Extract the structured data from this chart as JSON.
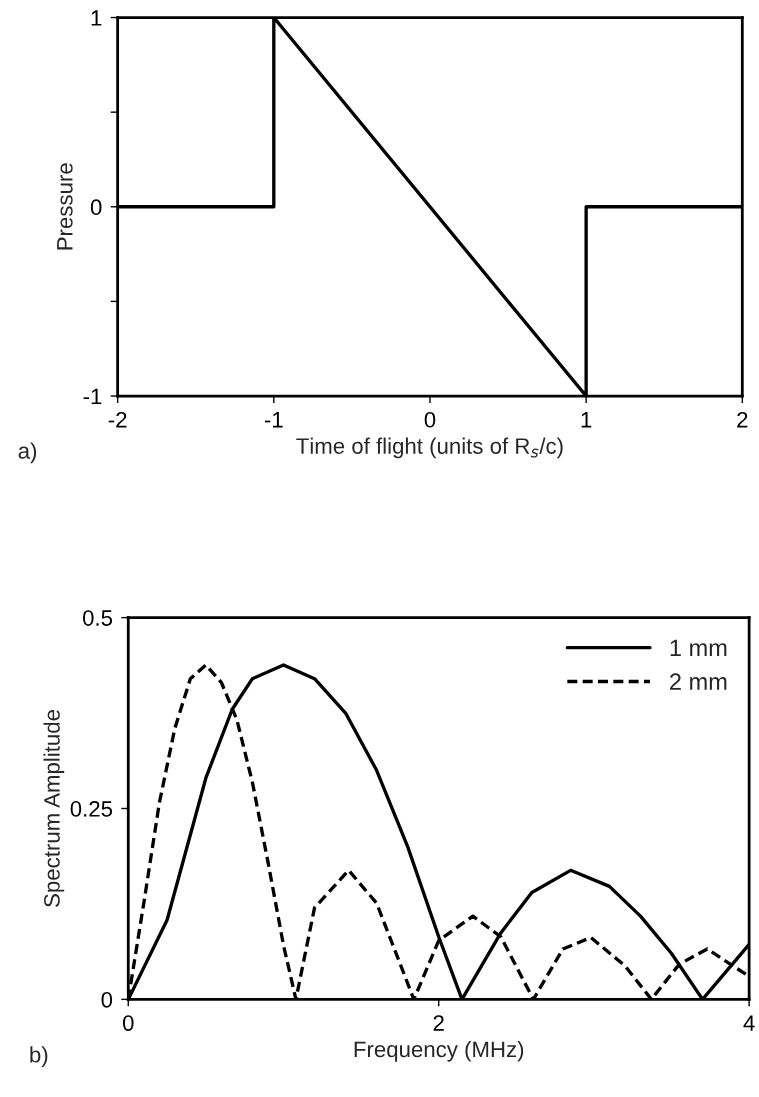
{
  "chart_data": [
    {
      "type": "line",
      "xlabel": "Time of flight (units of R$_{s}$/c)",
      "ylabel": "Pressure",
      "annotations": [
        "a)"
      ],
      "series": [
        {
          "color": "#000000",
          "line_style": "solid",
          "x": [
            -2,
            -1,
            -1,
            1,
            1,
            2
          ],
          "values": [
            0,
            0,
            1,
            -1,
            0,
            0
          ]
        }
      ],
      "xlim": [
        -2,
        2
      ],
      "xticks": [
        -2,
        -1,
        0,
        1,
        2
      ],
      "ylim": [
        -1,
        1
      ],
      "yticks": [
        -1,
        {
          "value": -0.5,
          "label": null
        },
        0,
        {
          "value": 0.5,
          "label": null
        },
        1
      ],
      "grid": false,
      "legend": false
    },
    {
      "type": "line",
      "xlabel": "Frequency (MHz)",
      "ylabel": "Spectrum Amplitude",
      "annotations": [
        "b)"
      ],
      "series": [
        {
          "name": "1 mm",
          "color": "#000000",
          "line_style": "solid",
          "x": [
            0,
            0.25,
            0.5,
            0.67,
            0.8,
            1.0,
            1.2,
            1.4,
            1.6,
            1.8,
            2.0,
            2.15,
            2.4,
            2.6,
            2.85,
            3.1,
            3.3,
            3.5,
            3.7,
            4.0
          ],
          "values": [
            0,
            0.104,
            0.29,
            0.38,
            0.42,
            0.438,
            0.42,
            0.375,
            0.3,
            0.2,
            0.082,
            0,
            0.087,
            0.14,
            0.169,
            0.148,
            0.109,
            0.06,
            0,
            0.072
          ]
        },
        {
          "name": "2 mm",
          "color": "#000000",
          "line_style": "dashed",
          "x": [
            0,
            0.1,
            0.2,
            0.3,
            0.4,
            0.5,
            0.6,
            0.7,
            0.8,
            0.9,
            1.0,
            1.08,
            1.2,
            1.42,
            1.6,
            1.84,
            2.0,
            2.22,
            2.4,
            2.61,
            2.8,
            2.98,
            3.2,
            3.37,
            3.55,
            3.73,
            4.0
          ],
          "values": [
            0,
            0.126,
            0.257,
            0.355,
            0.42,
            0.438,
            0.415,
            0.366,
            0.284,
            0.18,
            0.071,
            0,
            0.12,
            0.169,
            0.126,
            0,
            0.077,
            0.109,
            0.082,
            0,
            0.066,
            0.081,
            0.044,
            0,
            0.046,
            0.066,
            0.03
          ]
        }
      ],
      "xlim": [
        0,
        4
      ],
      "xticks": [
        0,
        2,
        4
      ],
      "ylim": [
        0,
        0.5
      ],
      "yticks": [
        0,
        0.25,
        0.5
      ],
      "grid": false,
      "legend": "top right"
    }
  ]
}
